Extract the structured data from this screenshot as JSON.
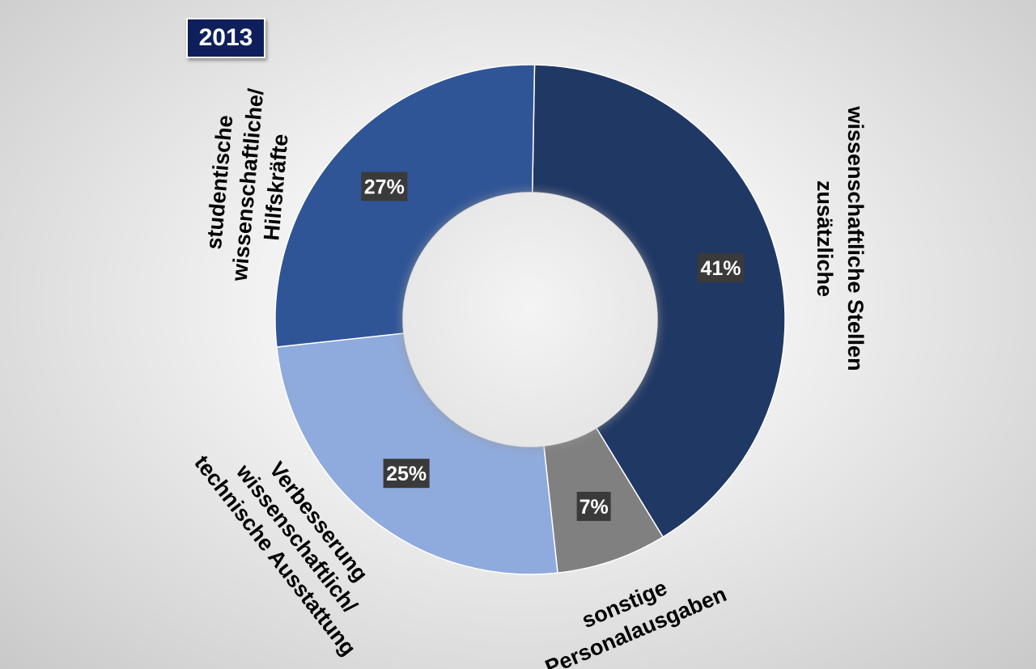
{
  "badge": {
    "year": "2013"
  },
  "chart_data": {
    "type": "pie",
    "variant": "donut",
    "title": "2013",
    "unit": "%",
    "categories": [
      "zusätzliche wissenschaftliche Stellen",
      "sonstige Personalausgaben",
      "Verbesserung wissenschaftlich/ technische Ausstattung",
      "studentische wissenschaftliche/ Hilfskräfte"
    ],
    "values": [
      41,
      7,
      25,
      27
    ],
    "labels": [
      "41%",
      "7%",
      "25%",
      "27%"
    ],
    "colors": [
      "#203864",
      "#808080",
      "#8faadc",
      "#2f5597"
    ],
    "legend": "none"
  },
  "category_labels": {
    "stellen": [
      "zusätzliche",
      "wissenschaftliche Stellen"
    ],
    "sonstige": [
      "sonstige",
      "Personalausgaben"
    ],
    "ausstattung": [
      "Verbesserung",
      "wissenschaftlich/",
      "technische Ausstattung"
    ],
    "hilfskraefte": [
      "studentische",
      "wissenschaftliche/",
      "Hilfskräfte"
    ]
  }
}
